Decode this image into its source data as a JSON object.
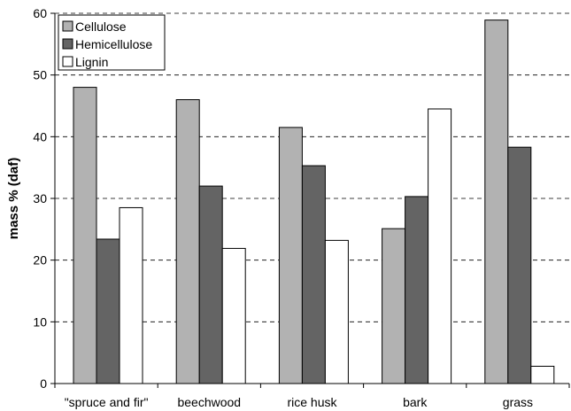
{
  "chart_data": {
    "type": "bar",
    "title": "",
    "xlabel": "",
    "ylabel": "mass % (daf)",
    "ylim": [
      0,
      60
    ],
    "yticks": [
      0,
      10,
      20,
      30,
      40,
      50,
      60
    ],
    "grid": "horizontal dashed",
    "legend_position": "top-left",
    "categories": [
      "\"spruce and fir\"",
      "beechwood",
      "rice husk",
      "bark",
      "grass"
    ],
    "series": [
      {
        "name": "Cellulose",
        "color": "#b2b2b2",
        "values": [
          48.0,
          46.0,
          41.5,
          25.1,
          58.9
        ]
      },
      {
        "name": "Hemicellulose",
        "color": "#646464",
        "values": [
          23.4,
          32.0,
          35.3,
          30.3,
          38.3
        ]
      },
      {
        "name": "Lignin",
        "color": "#ffffff",
        "values": [
          28.5,
          21.9,
          23.2,
          44.5,
          2.8
        ]
      }
    ]
  }
}
